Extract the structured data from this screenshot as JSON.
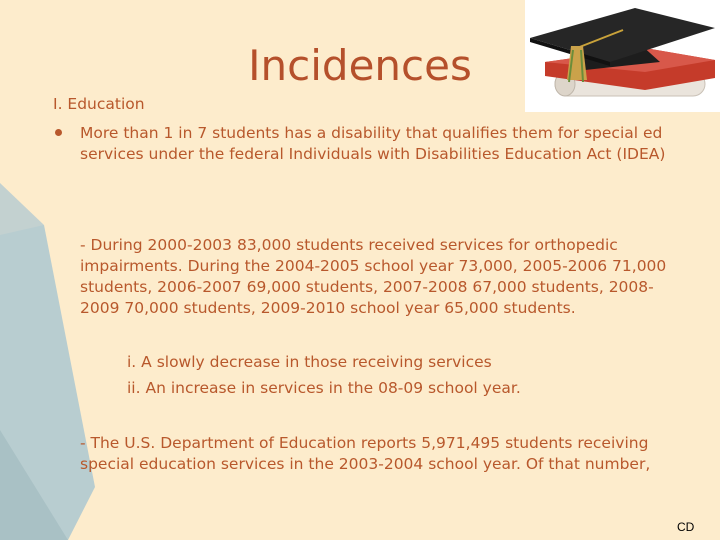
{
  "slide": {
    "title": "Incidences",
    "section": "I. Education",
    "bullet": "More than 1 in 7 students has a disability that qualifies them for special ed services under the federal Individuals with Disabilities Education Act (IDEA)",
    "paragraph1": "- During 2000-2003 83,000 students received services for orthopedic impairments. During the 2004-2005 school year 73,000, 2005-2006 71,000 students, 2006-2007 69,000 students, 2007-2008 67,000 students, 2008-2009 70,000 students, 2009-2010 school year 65,000 students.",
    "sub_items": [
      "i.  A slowly decrease in those receiving services",
      "ii.  An increase in services in the 08-09 school year."
    ],
    "paragraph2": "- The U.S. Department of Education reports 5,971,495 students receiving special  education services in the 2003-2004 school year. Of that number,",
    "footer": "CD"
  },
  "colors": {
    "background": "#fdeccc",
    "accent_shape": "#b8cdd0",
    "title": "#b5502b",
    "text": "#b8582c"
  },
  "image": {
    "icon": "graduation-cap-diploma-icon"
  }
}
